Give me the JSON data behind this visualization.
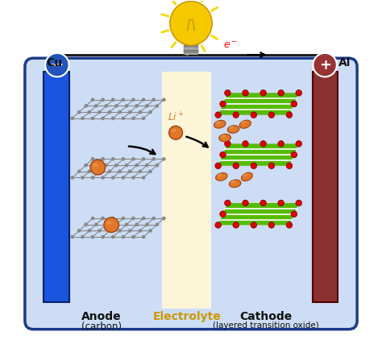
{
  "fig_width": 4.74,
  "fig_height": 4.22,
  "dpi": 100,
  "bg_color": "#ffffff",
  "box_color": "#1a3a8a",
  "box_bg": "#ccddf5",
  "anode_color": "#1a55dd",
  "cathode_color": "#8b3030",
  "electrolyte_color": "#fdf5d8",
  "cu_label": "Cu",
  "al_label": "Al",
  "anode_label": "Anode",
  "anode_sub": "(carbon)",
  "cathode_label": "Cathode",
  "cathode_sub": "(layered transition oxide)",
  "electrolyte_label": "Electrolyte",
  "li_label": "Li⁺",
  "graphene_node_color": "#888888",
  "li_ion_color": "#e07828",
  "cathode_layer_color": "#55bb00",
  "cathode_dot_color": "#dd0000",
  "bulb_body_color": "#f5c800",
  "bulb_ray_color": "#f5d800",
  "wire_color": "#111111",
  "minus_bg": "#2255bb",
  "plus_bg": "#993333",
  "arrow_color": "#111111",
  "label_color": "#111111",
  "electrolyte_label_color": "#cc9900"
}
